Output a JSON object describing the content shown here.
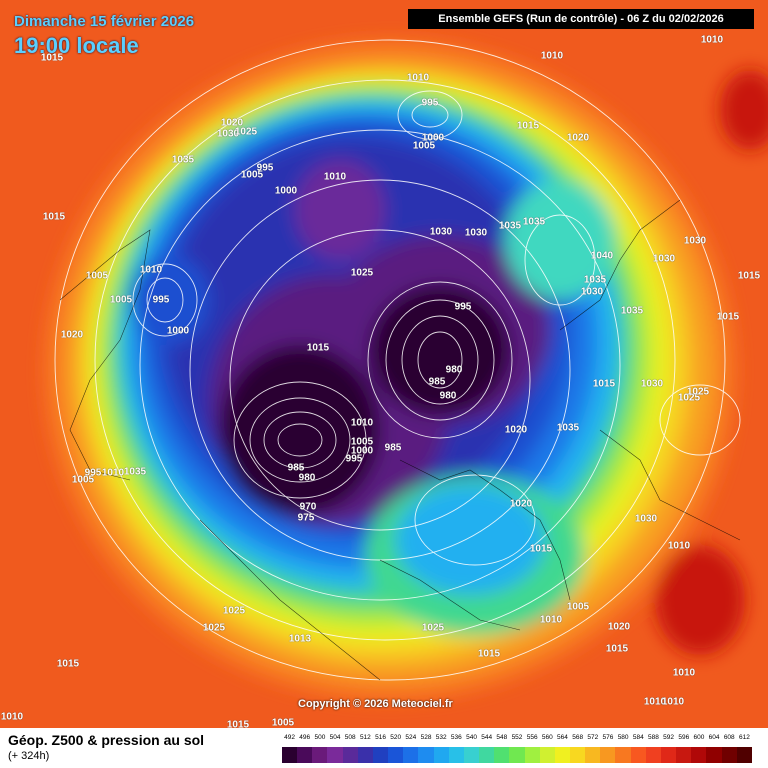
{
  "header": {
    "date_text": "Dimanche 15 février 2026",
    "time_text": "19:00 locale",
    "run_text": "Ensemble GEFS  (Run de contrôle)  -  06 Z du 02/02/2026"
  },
  "copyright": "Copyright © 2026 Meteociel.fr",
  "footer": {
    "title": "Géop. Z500 & pression au sol",
    "subtitle": "(+ 324h)"
  },
  "legend": {
    "values": [
      "492",
      "496",
      "500",
      "504",
      "508",
      "512",
      "516",
      "520",
      "524",
      "528",
      "532",
      "536",
      "540",
      "544",
      "548",
      "552",
      "556",
      "560",
      "564",
      "568",
      "572",
      "576",
      "580",
      "584",
      "588",
      "592",
      "596",
      "600",
      "604",
      "608",
      "612"
    ],
    "colors": [
      "#2a0030",
      "#4a0a5a",
      "#6a1a7a",
      "#7a2a9a",
      "#5a2a9a",
      "#3a30aa",
      "#2040c0",
      "#1a55d8",
      "#1c70e8",
      "#1e8cf0",
      "#20a8f0",
      "#28c0e8",
      "#38d0d0",
      "#40d8a0",
      "#50e070",
      "#70e850",
      "#a0f040",
      "#d0f030",
      "#f0f020",
      "#f8d820",
      "#f8b820",
      "#f89820",
      "#f87820",
      "#f85820",
      "#f04020",
      "#e02818",
      "#c81810",
      "#b00808",
      "#900000",
      "#700000",
      "#500000"
    ]
  },
  "pressure_labels": [
    {
      "t": "1015"
    },
    {
      "t": "1010"
    },
    {
      "t": "1010"
    },
    {
      "t": "995"
    },
    {
      "t": "1000"
    },
    {
      "t": "1005"
    },
    {
      "t": "1010"
    },
    {
      "t": "1015"
    },
    {
      "t": "1020"
    },
    {
      "t": "1020"
    },
    {
      "t": "1030"
    },
    {
      "t": "1025"
    },
    {
      "t": "1035"
    },
    {
      "t": "995"
    },
    {
      "t": "1005"
    },
    {
      "t": "1000"
    },
    {
      "t": "1010"
    },
    {
      "t": "1030"
    },
    {
      "t": "1030"
    },
    {
      "t": "1035"
    },
    {
      "t": "1035"
    },
    {
      "t": "1030"
    },
    {
      "t": "1015"
    },
    {
      "t": "1005"
    },
    {
      "t": "1010"
    },
    {
      "t": "1005"
    },
    {
      "t": "995"
    },
    {
      "t": "1000"
    },
    {
      "t": "1025"
    },
    {
      "t": "1040"
    },
    {
      "t": "1030"
    },
    {
      "t": "1015"
    },
    {
      "t": "1035"
    },
    {
      "t": "1030"
    },
    {
      "t": "1035"
    },
    {
      "t": "1015"
    },
    {
      "t": "1020"
    },
    {
      "t": "1015"
    },
    {
      "t": "995"
    },
    {
      "t": "985"
    },
    {
      "t": "980"
    },
    {
      "t": "980"
    },
    {
      "t": "1030"
    },
    {
      "t": "1025"
    },
    {
      "t": "1015"
    },
    {
      "t": "1025"
    },
    {
      "t": "1020"
    },
    {
      "t": "1035"
    },
    {
      "t": "1010"
    },
    {
      "t": "1005"
    },
    {
      "t": "1000"
    },
    {
      "t": "995"
    },
    {
      "t": "985"
    },
    {
      "t": "985"
    },
    {
      "t": "980"
    },
    {
      "t": "970"
    },
    {
      "t": "975"
    },
    {
      "t": "1005"
    },
    {
      "t": "995"
    },
    {
      "t": "1010"
    },
    {
      "t": "1035"
    },
    {
      "t": "1020"
    },
    {
      "t": "1030"
    },
    {
      "t": "1015"
    },
    {
      "t": "1010"
    },
    {
      "t": "1005"
    },
    {
      "t": "1010"
    },
    {
      "t": "1020"
    },
    {
      "t": "1025"
    },
    {
      "t": "1025"
    },
    {
      "t": "1013"
    },
    {
      "t": "1025"
    },
    {
      "t": "1015"
    },
    {
      "t": "1015"
    },
    {
      "t": "1010"
    },
    {
      "t": "1010"
    },
    {
      "t": "1015"
    },
    {
      "t": "1010"
    },
    {
      "t": "1015"
    },
    {
      "t": "1005"
    },
    {
      "t": "1010"
    }
  ]
}
